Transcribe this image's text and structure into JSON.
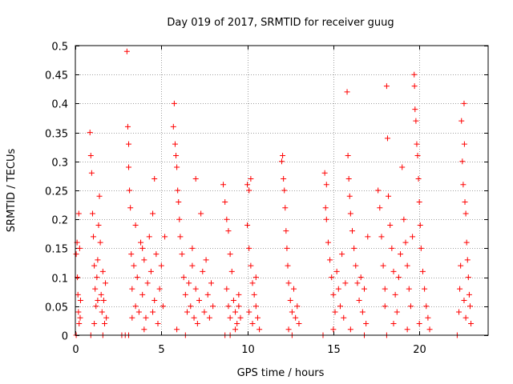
{
  "chart_data": {
    "type": "scatter",
    "title": "Day 019 of 2017, SRMTID for receiver guug",
    "xlabel": "GPS time / hours",
    "ylabel": "SRMTID / TECUs",
    "xlim": [
      0,
      24
    ],
    "ylim": [
      0,
      0.5
    ],
    "xticks": [
      0,
      5,
      10,
      15,
      20
    ],
    "xtick_labels": [
      "0",
      "5",
      "10",
      "15",
      "20"
    ],
    "yticks": [
      0,
      0.05,
      0.1,
      0.15,
      0.2,
      0.25,
      0.3,
      0.35,
      0.4,
      0.45,
      0.5
    ],
    "ytick_labels": [
      "0",
      "0.05",
      "0.1",
      "0.15",
      "0.2",
      "0.25",
      "0.3",
      "0.35",
      "0.4",
      "0.45",
      "0.5"
    ],
    "grid": true,
    "marker": "+",
    "series": [
      {
        "name": "SRMTID",
        "color": "#ff0000",
        "points": [
          [
            0.05,
            0.14
          ],
          [
            0.1,
            0.16
          ],
          [
            0.12,
            0.1
          ],
          [
            0.15,
            0.07
          ],
          [
            0.18,
            0.04
          ],
          [
            0.2,
            0.21
          ],
          [
            0.22,
            0.02
          ],
          [
            0.25,
            0.15
          ],
          [
            0.3,
            0.06
          ],
          [
            0.05,
            0.0
          ],
          [
            0.28,
            0.03
          ],
          [
            0.85,
            0.35
          ],
          [
            0.9,
            0.31
          ],
          [
            0.95,
            0.28
          ],
          [
            1.0,
            0.21
          ],
          [
            1.05,
            0.17
          ],
          [
            1.1,
            0.12
          ],
          [
            1.15,
            0.08
          ],
          [
            1.2,
            0.05
          ],
          [
            1.25,
            0.1
          ],
          [
            1.3,
            0.13
          ],
          [
            1.35,
            0.19
          ],
          [
            1.4,
            0.24
          ],
          [
            1.45,
            0.16
          ],
          [
            1.5,
            0.07
          ],
          [
            1.55,
            0.04
          ],
          [
            1.6,
            0.11
          ],
          [
            1.65,
            0.06
          ],
          [
            1.7,
            0.02
          ],
          [
            1.75,
            0.09
          ],
          [
            1.8,
            0.03
          ],
          [
            0.9,
            0.0
          ],
          [
            1.6,
            0.0
          ],
          [
            1.1,
            0.02
          ],
          [
            1.3,
            0.06
          ],
          [
            3.0,
            0.49
          ],
          [
            3.05,
            0.36
          ],
          [
            3.1,
            0.33
          ],
          [
            3.1,
            0.29
          ],
          [
            3.15,
            0.25
          ],
          [
            3.2,
            0.22
          ],
          [
            3.1,
            0.0
          ],
          [
            2.7,
            0.0
          ],
          [
            2.9,
            0.0
          ],
          [
            3.25,
            0.14
          ],
          [
            3.3,
            0.08
          ],
          [
            3.4,
            0.12
          ],
          [
            3.5,
            0.05
          ],
          [
            3.6,
            0.1
          ],
          [
            3.7,
            0.04
          ],
          [
            3.8,
            0.16
          ],
          [
            3.9,
            0.07
          ],
          [
            4.0,
            0.13
          ],
          [
            4.1,
            0.03
          ],
          [
            4.2,
            0.09
          ],
          [
            4.3,
            0.17
          ],
          [
            4.4,
            0.11
          ],
          [
            4.5,
            0.21
          ],
          [
            4.6,
            0.06
          ],
          [
            4.7,
            0.14
          ],
          [
            4.8,
            0.02
          ],
          [
            4.9,
            0.08
          ],
          [
            5.0,
            0.12
          ],
          [
            5.1,
            0.05
          ],
          [
            5.2,
            0.17
          ],
          [
            3.5,
            0.19
          ],
          [
            4.6,
            0.27
          ],
          [
            3.3,
            0.03
          ],
          [
            4.0,
            0.01
          ],
          [
            4.5,
            0.04
          ],
          [
            3.9,
            0.15
          ],
          [
            5.7,
            0.36
          ],
          [
            5.75,
            0.4
          ],
          [
            5.8,
            0.33
          ],
          [
            5.85,
            0.31
          ],
          [
            5.9,
            0.29
          ],
          [
            5.95,
            0.25
          ],
          [
            6.0,
            0.23
          ],
          [
            6.05,
            0.2
          ],
          [
            6.1,
            0.17
          ],
          [
            6.2,
            0.14
          ],
          [
            6.3,
            0.1
          ],
          [
            6.4,
            0.07
          ],
          [
            6.5,
            0.04
          ],
          [
            6.6,
            0.09
          ],
          [
            6.7,
            0.05
          ],
          [
            6.8,
            0.12
          ],
          [
            6.9,
            0.03
          ],
          [
            7.0,
            0.08
          ],
          [
            7.1,
            0.02
          ],
          [
            7.2,
            0.06
          ],
          [
            7.3,
            0.21
          ],
          [
            7.4,
            0.11
          ],
          [
            7.5,
            0.04
          ],
          [
            7.6,
            0.13
          ],
          [
            7.7,
            0.07
          ],
          [
            7.8,
            0.03
          ],
          [
            7.9,
            0.09
          ],
          [
            8.0,
            0.05
          ],
          [
            7.0,
            0.27
          ],
          [
            6.4,
            0.0
          ],
          [
            5.9,
            0.01
          ],
          [
            6.8,
            0.15
          ],
          [
            8.6,
            0.26
          ],
          [
            8.7,
            0.23
          ],
          [
            8.8,
            0.2
          ],
          [
            8.9,
            0.18
          ],
          [
            9.0,
            0.14
          ],
          [
            9.1,
            0.11
          ],
          [
            8.8,
            0.08
          ],
          [
            8.9,
            0.05
          ],
          [
            9.0,
            0.03
          ],
          [
            9.2,
            0.06
          ],
          [
            9.3,
            0.04
          ],
          [
            9.4,
            0.02
          ],
          [
            9.5,
            0.07
          ],
          [
            9.6,
            0.03
          ],
          [
            8.7,
            0.0
          ],
          [
            9.0,
            0.0
          ],
          [
            9.3,
            0.01
          ],
          [
            9.5,
            0.05
          ],
          [
            10.0,
            0.26
          ],
          [
            10.1,
            0.25
          ],
          [
            10.2,
            0.27
          ],
          [
            10.0,
            0.19
          ],
          [
            10.1,
            0.15
          ],
          [
            10.2,
            0.12
          ],
          [
            10.3,
            0.09
          ],
          [
            10.4,
            0.07
          ],
          [
            10.5,
            0.05
          ],
          [
            10.6,
            0.03
          ],
          [
            10.7,
            0.01
          ],
          [
            10.1,
            0.04
          ],
          [
            10.3,
            0.02
          ],
          [
            10.5,
            0.1
          ],
          [
            12.0,
            0.3
          ],
          [
            12.05,
            0.31
          ],
          [
            12.1,
            0.27
          ],
          [
            12.15,
            0.25
          ],
          [
            12.2,
            0.22
          ],
          [
            12.25,
            0.18
          ],
          [
            12.3,
            0.15
          ],
          [
            12.35,
            0.12
          ],
          [
            12.4,
            0.09
          ],
          [
            12.5,
            0.06
          ],
          [
            12.6,
            0.04
          ],
          [
            12.7,
            0.08
          ],
          [
            12.8,
            0.03
          ],
          [
            12.9,
            0.05
          ],
          [
            13.0,
            0.02
          ],
          [
            12.4,
            0.01
          ],
          [
            12.6,
            0.0
          ],
          [
            14.5,
            0.28
          ],
          [
            14.6,
            0.26
          ],
          [
            14.55,
            0.22
          ],
          [
            14.6,
            0.2
          ],
          [
            14.7,
            0.16
          ],
          [
            14.8,
            0.13
          ],
          [
            14.9,
            0.1
          ],
          [
            15.0,
            0.07
          ],
          [
            15.1,
            0.04
          ],
          [
            15.2,
            0.11
          ],
          [
            15.3,
            0.08
          ],
          [
            15.4,
            0.05
          ],
          [
            15.5,
            0.14
          ],
          [
            15.6,
            0.03
          ],
          [
            15.7,
            0.09
          ],
          [
            15.8,
            0.42
          ],
          [
            15.85,
            0.31
          ],
          [
            15.9,
            0.27
          ],
          [
            15.95,
            0.24
          ],
          [
            16.0,
            0.21
          ],
          [
            16.1,
            0.18
          ],
          [
            16.2,
            0.15
          ],
          [
            16.3,
            0.12
          ],
          [
            16.4,
            0.09
          ],
          [
            16.5,
            0.06
          ],
          [
            16.6,
            0.1
          ],
          [
            16.7,
            0.04
          ],
          [
            16.8,
            0.08
          ],
          [
            16.9,
            0.02
          ],
          [
            17.0,
            0.17
          ],
          [
            14.4,
            0.0
          ],
          [
            15.0,
            0.01
          ],
          [
            16.0,
            0.01
          ],
          [
            16.8,
            0.0
          ],
          [
            17.6,
            0.25
          ],
          [
            17.7,
            0.22
          ],
          [
            17.8,
            0.17
          ],
          [
            17.9,
            0.12
          ],
          [
            18.0,
            0.08
          ],
          [
            18.0,
            0.05
          ],
          [
            18.1,
            0.43
          ],
          [
            18.15,
            0.34
          ],
          [
            18.2,
            0.24
          ],
          [
            18.3,
            0.19
          ],
          [
            18.4,
            0.15
          ],
          [
            18.5,
            0.11
          ],
          [
            18.6,
            0.07
          ],
          [
            18.7,
            0.04
          ],
          [
            18.8,
            0.1
          ],
          [
            18.9,
            0.14
          ],
          [
            19.0,
            0.29
          ],
          [
            19.1,
            0.2
          ],
          [
            19.2,
            0.16
          ],
          [
            19.3,
            0.12
          ],
          [
            19.4,
            0.08
          ],
          [
            19.5,
            0.05
          ],
          [
            19.6,
            0.17
          ],
          [
            19.7,
            0.45
          ],
          [
            19.72,
            0.43
          ],
          [
            19.75,
            0.39
          ],
          [
            19.8,
            0.37
          ],
          [
            19.85,
            0.33
          ],
          [
            19.9,
            0.31
          ],
          [
            19.95,
            0.27
          ],
          [
            20.0,
            0.23
          ],
          [
            20.05,
            0.19
          ],
          [
            20.1,
            0.15
          ],
          [
            20.2,
            0.11
          ],
          [
            20.3,
            0.08
          ],
          [
            20.4,
            0.05
          ],
          [
            20.5,
            0.03
          ],
          [
            20.6,
            0.01
          ],
          [
            18.1,
            0.0
          ],
          [
            18.5,
            0.02
          ],
          [
            19.3,
            0.01
          ],
          [
            20.0,
            0.02
          ],
          [
            22.2,
            0.0
          ],
          [
            22.3,
            0.04
          ],
          [
            22.35,
            0.08
          ],
          [
            22.4,
            0.12
          ],
          [
            22.45,
            0.37
          ],
          [
            22.5,
            0.3
          ],
          [
            22.55,
            0.26
          ],
          [
            22.6,
            0.4
          ],
          [
            22.62,
            0.33
          ],
          [
            22.65,
            0.23
          ],
          [
            22.7,
            0.21
          ],
          [
            22.75,
            0.16
          ],
          [
            22.8,
            0.13
          ],
          [
            22.85,
            0.1
          ],
          [
            22.9,
            0.07
          ],
          [
            22.95,
            0.05
          ],
          [
            23.0,
            0.02
          ],
          [
            22.6,
            0.06
          ],
          [
            22.7,
            0.03
          ]
        ]
      }
    ]
  }
}
